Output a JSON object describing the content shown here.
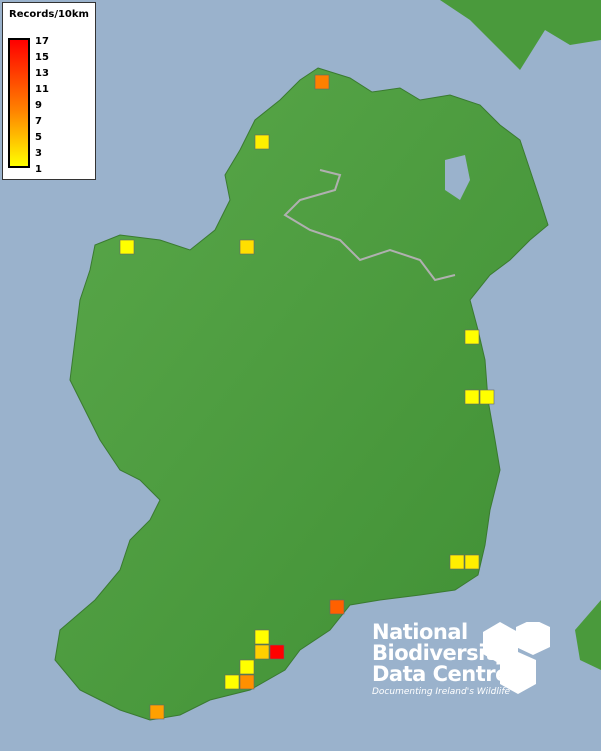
{
  "legend": {
    "title": "Records/10km",
    "ticks": [
      "17",
      "15",
      "13",
      "11",
      "9",
      "7",
      "5",
      "3",
      "1"
    ],
    "color_low": "#ffff00",
    "color_mid": "#ff8000",
    "color_high": "#ff0000"
  },
  "map": {
    "land_color": "#4a9a3c",
    "sea_color": "#9ab2cc",
    "record_counts": [
      9,
      2,
      1,
      3,
      1,
      1,
      1,
      2,
      2,
      11,
      1,
      4,
      17,
      1,
      1,
      8,
      7
    ]
  },
  "logo": {
    "lines": [
      "National",
      "Biodiversity",
      "Data Centre"
    ],
    "tagline": "Documenting Ireland's Wildlife"
  }
}
